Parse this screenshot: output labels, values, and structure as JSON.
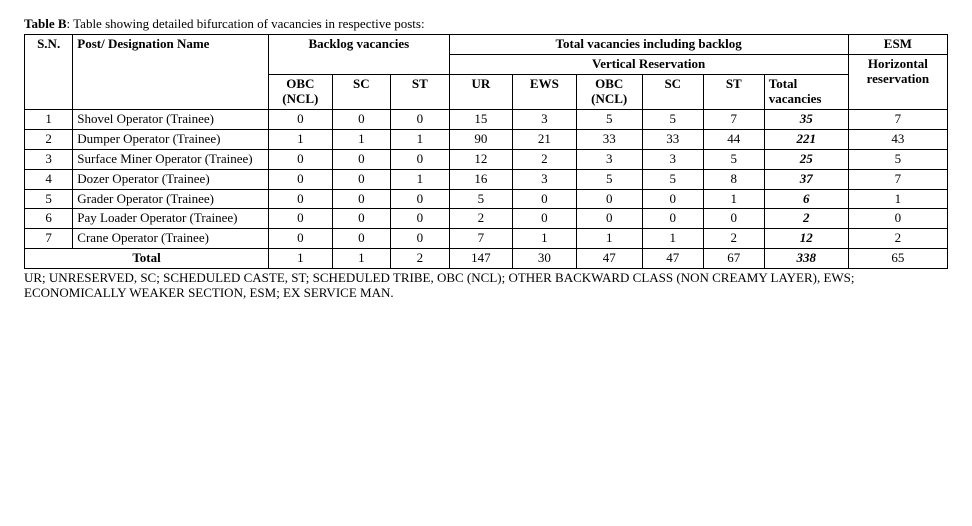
{
  "caption_label": "Table B",
  "caption_rest": ": Table showing detailed bifurcation of vacancies in respective posts:",
  "headers": {
    "sn": "S.N.",
    "name": "Post/ Designation Name",
    "backlog": "Backlog vacancies",
    "total_inc_backlog": "Total vacancies including backlog",
    "esm": "ESM",
    "vertical": "Vertical Reservation",
    "horizontal": "Horizontal reservation",
    "b_obc": "OBC (NCL)",
    "b_sc": "SC",
    "b_st": "ST",
    "v_ur": "UR",
    "v_ews": "EWS",
    "v_obc": "OBC (NCL)",
    "v_sc": "SC",
    "v_st": "ST",
    "v_total": "Total vacancies"
  },
  "rows": [
    {
      "sn": "1",
      "name": "Shovel Operator (Trainee)",
      "b_obc": "0",
      "b_sc": "0",
      "b_st": "0",
      "ur": "15",
      "ews": "3",
      "v_obc": "5",
      "v_sc": "5",
      "v_st": "7",
      "total": "35",
      "esm": "7"
    },
    {
      "sn": "2",
      "name": "Dumper Operator (Trainee)",
      "b_obc": "1",
      "b_sc": "1",
      "b_st": "1",
      "ur": "90",
      "ews": "21",
      "v_obc": "33",
      "v_sc": "33",
      "v_st": "44",
      "total": "221",
      "esm": "43"
    },
    {
      "sn": "3",
      "name": "Surface Miner Operator (Trainee)",
      "b_obc": "0",
      "b_sc": "0",
      "b_st": "0",
      "ur": "12",
      "ews": "2",
      "v_obc": "3",
      "v_sc": "3",
      "v_st": "5",
      "total": "25",
      "esm": "5"
    },
    {
      "sn": "4",
      "name": "Dozer Operator (Trainee)",
      "b_obc": "0",
      "b_sc": "0",
      "b_st": "1",
      "ur": "16",
      "ews": "3",
      "v_obc": "5",
      "v_sc": "5",
      "v_st": "8",
      "total": "37",
      "esm": "7"
    },
    {
      "sn": "5",
      "name": "Grader Operator (Trainee)",
      "b_obc": "0",
      "b_sc": "0",
      "b_st": "0",
      "ur": "5",
      "ews": "0",
      "v_obc": "0",
      "v_sc": "0",
      "v_st": "1",
      "total": "6",
      "esm": "1"
    },
    {
      "sn": "6",
      "name": "Pay Loader Operator (Trainee)",
      "b_obc": "0",
      "b_sc": "0",
      "b_st": "0",
      "ur": "2",
      "ews": "0",
      "v_obc": "0",
      "v_sc": "0",
      "v_st": "0",
      "total": "2",
      "esm": "0"
    },
    {
      "sn": "7",
      "name": "Crane Operator (Trainee)",
      "b_obc": "0",
      "b_sc": "0",
      "b_st": "0",
      "ur": "7",
      "ews": "1",
      "v_obc": "1",
      "v_sc": "1",
      "v_st": "2",
      "total": "12",
      "esm": "2"
    }
  ],
  "total_row": {
    "label": "Total",
    "b_obc": "1",
    "b_sc": "1",
    "b_st": "2",
    "ur": "147",
    "ews": "30",
    "v_obc": "47",
    "v_sc": "47",
    "v_st": "67",
    "total": "338",
    "esm": "65"
  },
  "footer": "UR; UNRESERVED, SC; SCHEDULED CASTE, ST; SCHEDULED TRIBE, OBC (NCL); OTHER BACKWARD CLASS (NON CREAMY LAYER), EWS; ECONOMICALLY WEAKER SECTION, ESM; EX SERVICE MAN."
}
